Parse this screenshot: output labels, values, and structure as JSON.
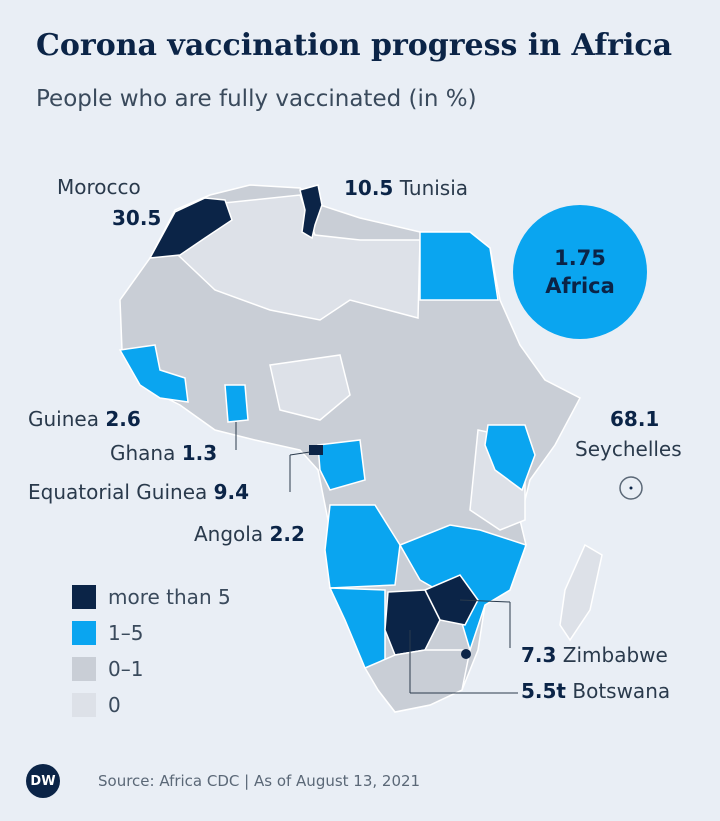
{
  "title": "Corona vaccination progress in Africa",
  "subtitle": "People who are fully vaccinated (in %)",
  "colors": {
    "more_than_5": "#0b2447",
    "one_to_5": "#0aa5f0",
    "zero_to_1": "#c9ced6",
    "zero": "#dde1e8",
    "background": "#e9eef5"
  },
  "africa": {
    "value": "1.75",
    "label": "Africa"
  },
  "countries": {
    "morocco": {
      "name": "Morocco",
      "value": "30.5"
    },
    "tunisia": {
      "name": "Tunisia",
      "value": "10.5"
    },
    "guinea": {
      "name": "Guinea",
      "value": "2.6"
    },
    "ghana": {
      "name": "Ghana",
      "value": "1.3"
    },
    "eq_guinea": {
      "name": "Equatorial Guinea",
      "value": "9.4"
    },
    "angola": {
      "name": "Angola",
      "value": "2.2"
    },
    "seychelles": {
      "name": "Seychelles",
      "value": "68.1"
    },
    "zimbabwe": {
      "name": "Zimbabwe",
      "value": "7.3"
    },
    "botswana": {
      "name": "Botswana",
      "value": "5.5t"
    }
  },
  "legend": [
    {
      "label": "more than 5",
      "color": "#0b2447"
    },
    {
      "label": "1–5",
      "color": "#0aa5f0"
    },
    {
      "label": "0–1",
      "color": "#c9ced6"
    },
    {
      "label": "0",
      "color": "#dde1e8"
    }
  ],
  "footer": {
    "logo": "DW",
    "source": "Source: Africa CDC | As of August 13, 2021"
  }
}
